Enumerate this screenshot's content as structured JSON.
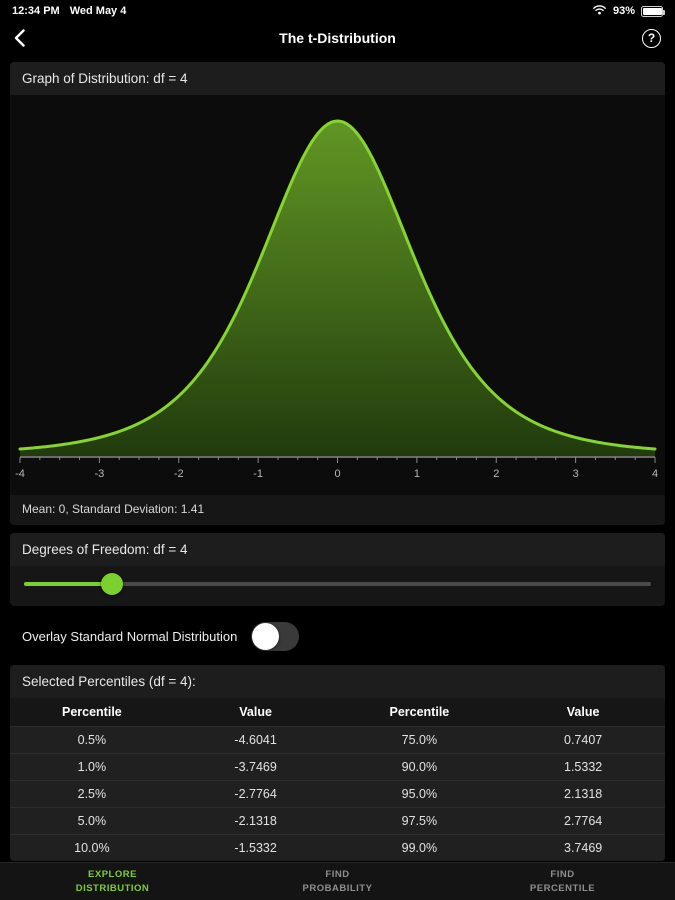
{
  "accent_color": "#7cd02e",
  "status_bar": {
    "time": "12:34 PM",
    "date": "Wed May 4",
    "battery_percent": "93%",
    "battery_level": 93
  },
  "nav": {
    "title": "The t-Distribution",
    "back_icon": "chevron-left",
    "help_icon": "question-mark-circle"
  },
  "graph": {
    "header": "Graph of Distribution: df = 4",
    "df": 4,
    "x_min": -4,
    "x_max": 4,
    "x_ticks": [
      -4,
      -3,
      -2,
      -1,
      0,
      1,
      2,
      3,
      4
    ],
    "stats_line": "Mean: 0, Standard Deviation: 1.41",
    "curve_color": "#85d430",
    "fill_top": "#6aa527",
    "fill_bottom": "#223d0d",
    "axis_color": "#8a8a8a"
  },
  "slider": {
    "label": "Degrees of Freedom: df = 4",
    "position_percent": 14
  },
  "toggle": {
    "label": "Overlay Standard Normal Distribution",
    "state": "off"
  },
  "percentiles": {
    "header": "Selected Percentiles (df = 4):",
    "columns": [
      "Percentile",
      "Value",
      "Percentile",
      "Value"
    ],
    "rows": [
      [
        "0.5%",
        "-4.6041",
        "75.0%",
        "0.7407"
      ],
      [
        "1.0%",
        "-3.7469",
        "90.0%",
        "1.5332"
      ],
      [
        "2.5%",
        "-2.7764",
        "95.0%",
        "2.1318"
      ],
      [
        "5.0%",
        "-2.1318",
        "97.5%",
        "2.7764"
      ],
      [
        "10.0%",
        "-1.5332",
        "99.0%",
        "3.7469"
      ]
    ]
  },
  "tab_bar": [
    {
      "id": "explore-distribution",
      "lines": [
        "EXPLORE",
        "DISTRIBUTION"
      ],
      "active": true
    },
    {
      "id": "find-probability",
      "lines": [
        "FIND",
        "PROBABILITY"
      ],
      "active": false
    },
    {
      "id": "find-percentile",
      "lines": [
        "FIND",
        "PERCENTILE"
      ],
      "active": false
    }
  ]
}
